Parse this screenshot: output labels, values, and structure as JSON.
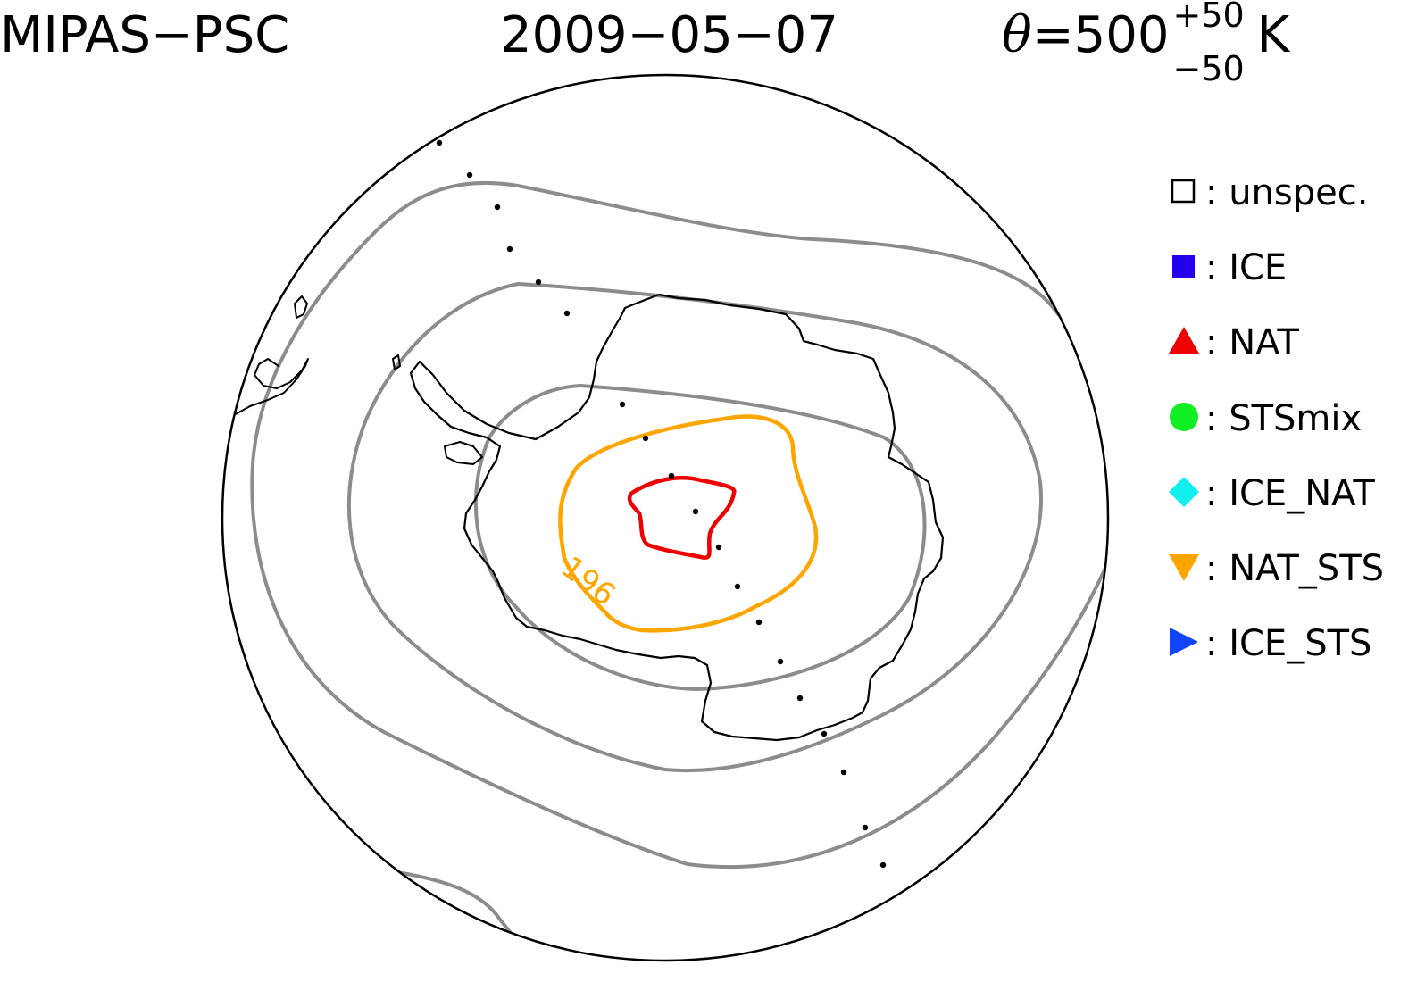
{
  "header": {
    "instrument": "MIPAS−PSC",
    "date": "2009−05−07",
    "theta": {
      "symbol": "θ",
      "equals": "=",
      "value": "500",
      "sup": "+50",
      "sub": "−50",
      "unit": "K"
    }
  },
  "map": {
    "projection": "south-polar-stereographic",
    "contour_label": "196",
    "colors": {
      "temperature_contour": "#ffa500",
      "inner_contour": "#ee0000",
      "vortex_contours": "#8c8c8c",
      "coastline": "#000000"
    }
  },
  "legend": {
    "items": [
      {
        "symbol": "open-square-icon",
        "color": "#000000",
        "label": ": unspec."
      },
      {
        "symbol": "filled-square-icon",
        "color": "#2200ee",
        "label": ": ICE"
      },
      {
        "symbol": "triangle-up-icon",
        "color": "#ee0000",
        "label": ": NAT"
      },
      {
        "symbol": "circle-icon",
        "color": "#11ee22",
        "label": ": STSmix"
      },
      {
        "symbol": "diamond-icon",
        "color": "#11eeee",
        "label": ": ICE_NAT"
      },
      {
        "symbol": "triangle-down-icon",
        "color": "#ffa500",
        "label": ": NAT_STS"
      },
      {
        "symbol": "triangle-right-icon",
        "color": "#1144ff",
        "label": ": ICE_STS"
      }
    ]
  }
}
